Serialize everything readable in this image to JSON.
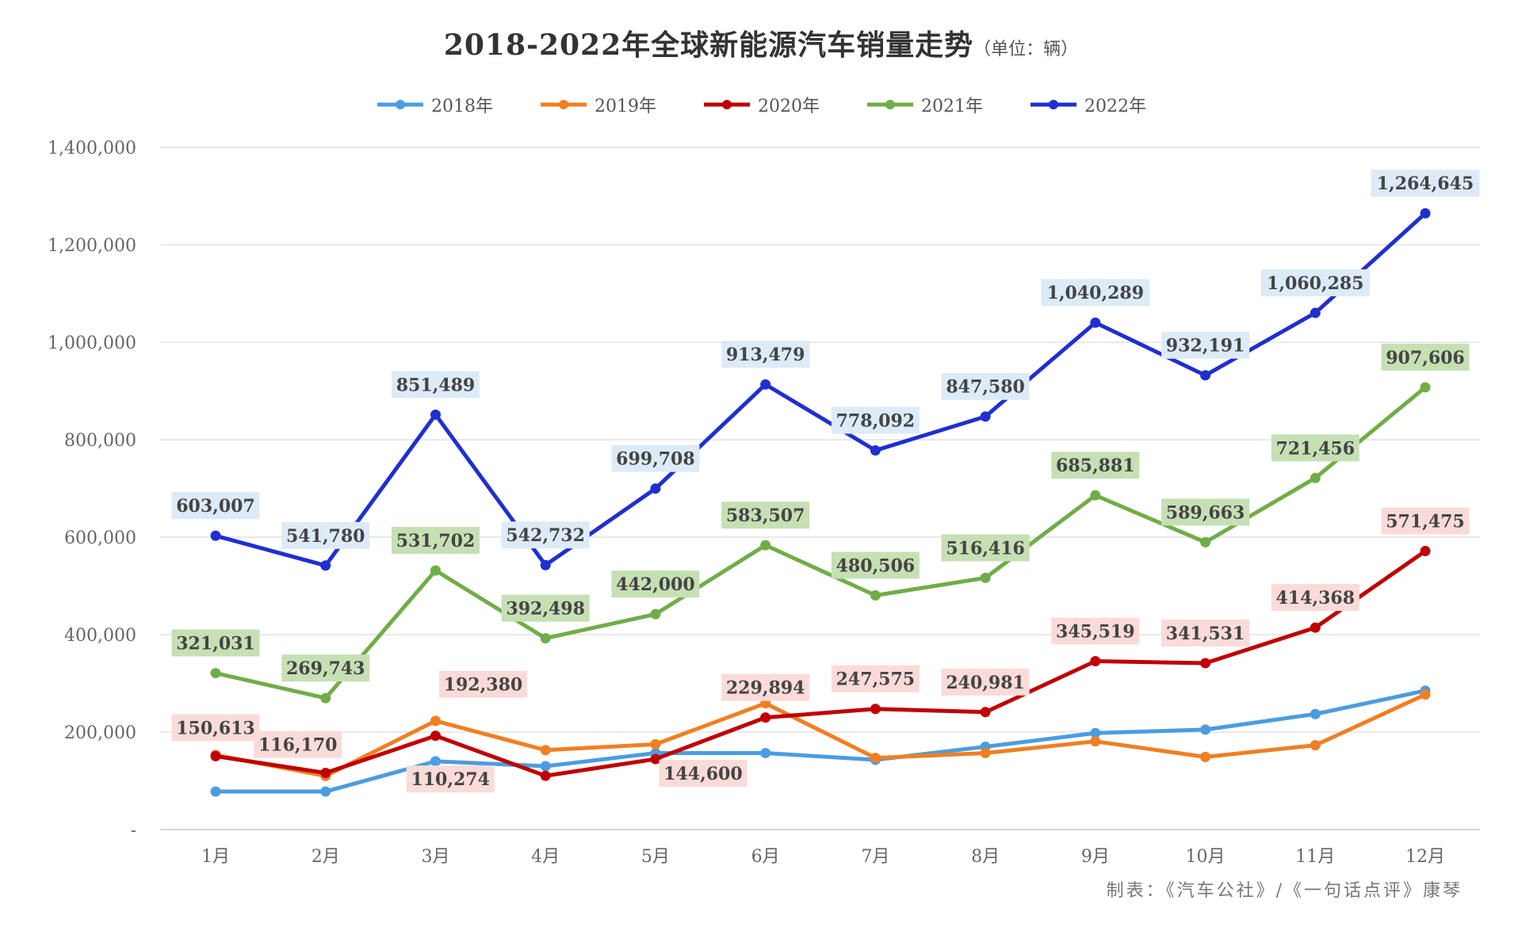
{
  "chart_data": {
    "type": "line",
    "title": "2018-2022年全球新能源汽车销量走势",
    "unit": "（单位：辆）",
    "categories": [
      "1月",
      "2月",
      "3月",
      "4月",
      "5月",
      "6月",
      "7月",
      "8月",
      "9月",
      "10月",
      "11月",
      "12月"
    ],
    "ylim": [
      0,
      1400000
    ],
    "yticks": [
      0,
      200000,
      400000,
      600000,
      800000,
      1000000,
      1200000,
      1400000
    ],
    "ytick_labels": [
      "-",
      "200,000",
      "400,000",
      "600,000",
      "800,000",
      "1,000,000",
      "1,200,000",
      "1,400,000"
    ],
    "grid": true,
    "legend": "top",
    "series": [
      {
        "name": "2018年",
        "color": "#4a9de0",
        "labeled": false,
        "values": [
          78000,
          78000,
          140000,
          130000,
          157000,
          157000,
          143000,
          170000,
          198000,
          205000,
          237000,
          285000
        ]
      },
      {
        "name": "2019年",
        "color": "#f07f22",
        "labeled": false,
        "values": [
          153000,
          110000,
          223000,
          163000,
          175000,
          259000,
          147000,
          157000,
          181000,
          149000,
          173000,
          277000
        ]
      },
      {
        "name": "2020年",
        "color": "#c00000",
        "labeled": true,
        "label_bg": "#fadbd8",
        "values": [
          150613,
          116170,
          192380,
          110274,
          144600,
          229894,
          247575,
          240981,
          345519,
          341531,
          414368,
          571475
        ],
        "labels": [
          "150,613",
          "116,170",
          "192,380",
          "110,274",
          "144,600",
          "229,894",
          "247,575",
          "240,981",
          "345,519",
          "341,531",
          "414,368",
          "571,475"
        ]
      },
      {
        "name": "2021年",
        "color": "#70ad47",
        "labeled": true,
        "label_bg": "#c6e0b4",
        "values": [
          321031,
          269743,
          531702,
          392498,
          442000,
          583507,
          480506,
          516416,
          685881,
          589663,
          721456,
          907606
        ],
        "labels": [
          "321,031",
          "269,743",
          "531,702",
          "392,498",
          "442,000",
          "583,507",
          "480,506",
          "516,416",
          "685,881",
          "589,663",
          "721,456",
          "907,606"
        ]
      },
      {
        "name": "2022年",
        "color": "#1f2fd0",
        "labeled": true,
        "label_bg": "#dcebf7",
        "values": [
          603007,
          541780,
          851489,
          542732,
          699708,
          913479,
          778092,
          847580,
          1040289,
          932191,
          1060285,
          1264645
        ],
        "labels": [
          "603,007",
          "541,780",
          "851,489",
          "542,732",
          "699,708",
          "913,479",
          "778,092",
          "847,580",
          "1,040,289",
          "932,191",
          "1,060,285",
          "1,264,645"
        ]
      }
    ]
  },
  "footer": "制表：《汽车公社》/《一句话点评》康琴"
}
